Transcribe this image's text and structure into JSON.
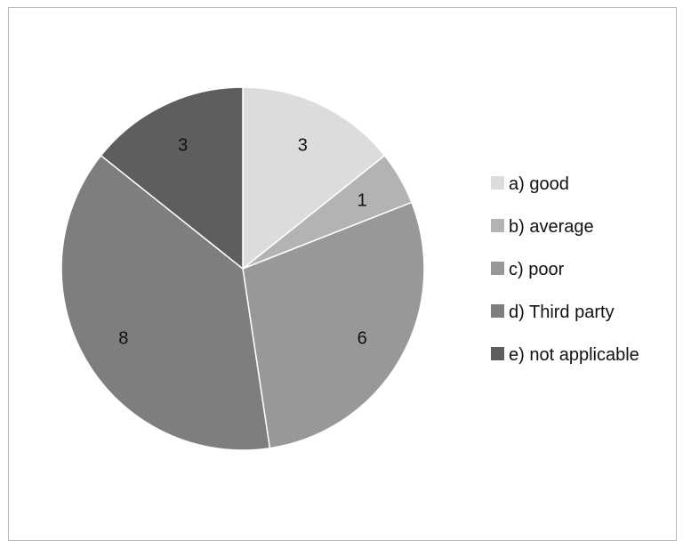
{
  "chart_data": {
    "type": "pie",
    "title": "",
    "categories": [
      "a) good",
      "b) average",
      "c) poor",
      "d) Third party",
      "e) not applicable"
    ],
    "values": [
      3,
      1,
      6,
      8,
      3
    ],
    "data_labels": [
      "3",
      "1",
      "6",
      "8",
      "3"
    ],
    "colors": [
      "#dcdcdc",
      "#b3b3b3",
      "#989898",
      "#7e7e7e",
      "#5e5e5e"
    ],
    "start_angle_deg": 0,
    "direction": "clockwise",
    "legend_position": "right"
  }
}
